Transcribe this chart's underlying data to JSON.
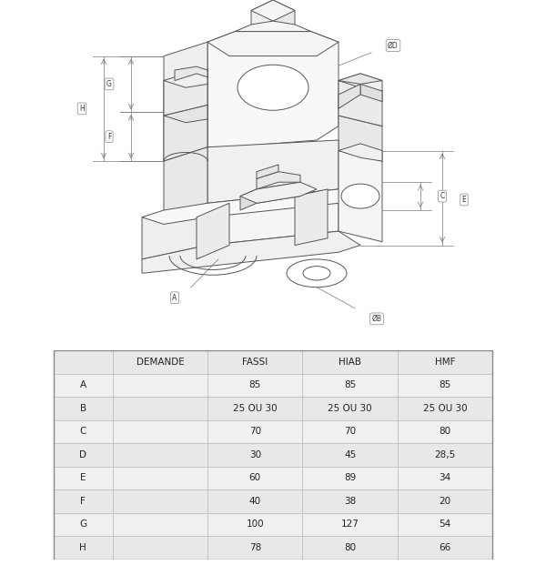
{
  "table_headers": [
    "",
    "DEMANDE",
    "FASSI",
    "HIAB",
    "HMF"
  ],
  "table_rows": [
    [
      "A",
      "",
      "85",
      "85",
      "85"
    ],
    [
      "B",
      "",
      "25 OU 30",
      "25 OU 30",
      "25 OU 30"
    ],
    [
      "C",
      "",
      "70",
      "70",
      "80"
    ],
    [
      "D",
      "",
      "30",
      "45",
      "28,5"
    ],
    [
      "E",
      "",
      "60",
      "89",
      "34"
    ],
    [
      "F",
      "",
      "40",
      "38",
      "20"
    ],
    [
      "G",
      "",
      "100",
      "127",
      "54"
    ],
    [
      "H",
      "",
      "78",
      "80",
      "66"
    ]
  ],
  "header_bg": "#e8e8e8",
  "row_bg_odd": "#f0f0f0",
  "row_bg_even": "#e8e8e8",
  "border_color": "#bbbbbb",
  "text_color": "#222222",
  "fig_bg": "#ffffff",
  "font_size_header": 7.5,
  "font_size_cell": 7.5
}
